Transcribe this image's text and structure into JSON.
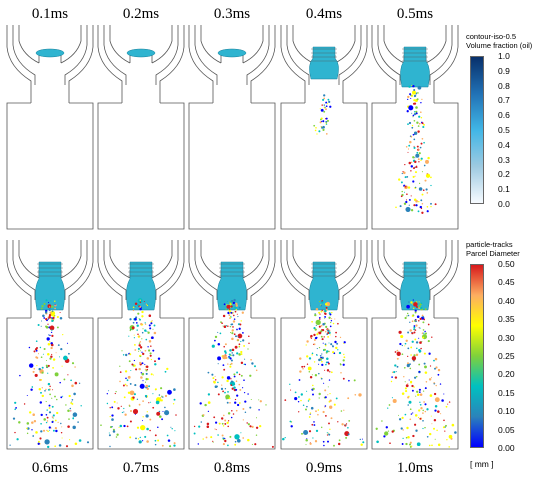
{
  "times_top": [
    "0.1ms",
    "0.2ms",
    "0.3ms",
    "0.4ms",
    "0.5ms"
  ],
  "times_bottom": [
    "0.6ms",
    "0.7ms",
    "0.8ms",
    "0.9ms",
    "1.0ms"
  ],
  "legend_top": {
    "title_line1": "contour-iso-0.5",
    "title_line2": "Volume fraction (oil)",
    "ticks": [
      "1.0",
      "0.9",
      "0.8",
      "0.7",
      "0.6",
      "0.5",
      "0.4",
      "0.3",
      "0.2",
      "0.1",
      "0.0"
    ],
    "colors": [
      "#08306b",
      "#2171b5",
      "#41b6e6",
      "#9ecae1",
      "#f7fbff"
    ]
  },
  "legend_bottom": {
    "title_line1": "particle-tracks",
    "title_line2": "Parcel Diameter",
    "ticks": [
      "0.50",
      "0.45",
      "0.40",
      "0.35",
      "0.30",
      "0.25",
      "0.20",
      "0.15",
      "0.10",
      "0.05",
      "0.00"
    ],
    "units": "[ mm ]",
    "colors": [
      "#d7191c",
      "#fdae61",
      "#ffff00",
      "#7fd13b",
      "#00c0c0",
      "#2b83ba",
      "#0000ff"
    ]
  },
  "spray_intensity": [
    0.0,
    0.0,
    0.0,
    0.15,
    0.6,
    0.9,
    1.0,
    1.0,
    1.0,
    1.0
  ]
}
